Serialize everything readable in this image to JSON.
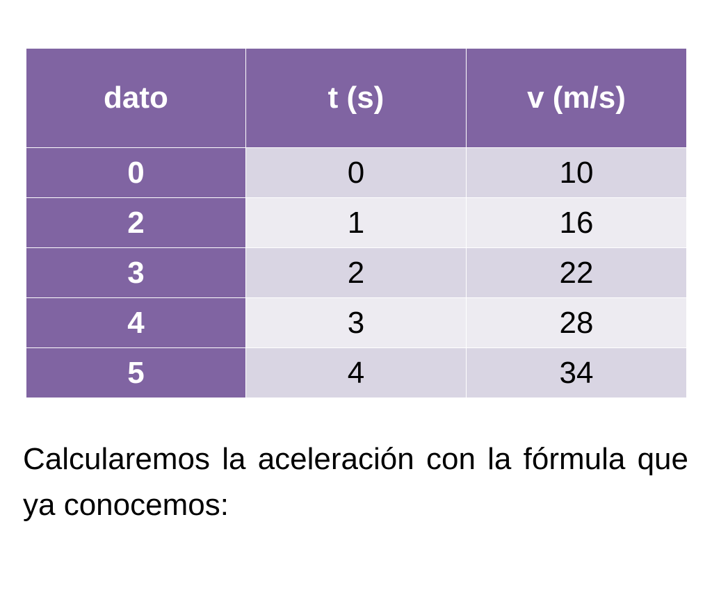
{
  "table": {
    "headers": [
      "dato",
      "t (s)",
      "v (m/s)"
    ],
    "rows": [
      [
        "0",
        "0",
        "10"
      ],
      [
        "2",
        "1",
        "16"
      ],
      [
        "3",
        "2",
        "22"
      ],
      [
        "4",
        "3",
        "28"
      ],
      [
        "5",
        "4",
        "34"
      ]
    ]
  },
  "caption": {
    "text": "Calcularemos la aceleración con la fórmula que ya conocemos:"
  },
  "colors": {
    "header_bg": "#8064a2",
    "row_dark_bg": "#d9d5e3",
    "row_light_bg": "#edebf1",
    "header_text": "#ffffff"
  }
}
